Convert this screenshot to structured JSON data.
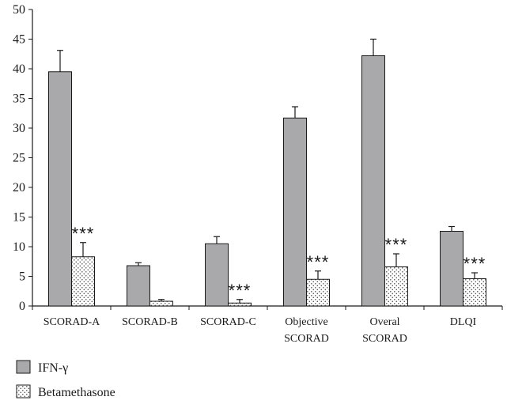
{
  "chart_data": {
    "type": "bar",
    "ylim": [
      0,
      50
    ],
    "yticks": [
      0,
      5,
      10,
      15,
      20,
      25,
      30,
      35,
      40,
      45,
      50
    ],
    "grid": false,
    "legend_position": "bottom-left",
    "categories": [
      [
        "SCORAD-A"
      ],
      [
        "SCORAD-B"
      ],
      [
        "SCORAD-C"
      ],
      [
        "Objective",
        "SCORAD"
      ],
      [
        "Overal",
        "SCORAD"
      ],
      [
        "DLQI"
      ]
    ],
    "series": [
      {
        "name": "IFN-γ",
        "color": "#a9a9ab",
        "pattern": "solid",
        "values": [
          39.5,
          6.8,
          10.5,
          31.7,
          42.2,
          12.6
        ],
        "errors": [
          3.6,
          0.5,
          1.2,
          1.9,
          2.8,
          0.8
        ]
      },
      {
        "name": "Betamethasone",
        "color": "#ffffff",
        "pattern": "dotted",
        "values": [
          8.3,
          0.8,
          0.5,
          4.5,
          6.6,
          4.6
        ],
        "errors": [
          2.4,
          0.3,
          0.6,
          1.4,
          2.2,
          1.0
        ]
      }
    ],
    "annotations": [
      "***",
      "",
      "***",
      "***",
      "***",
      "***"
    ]
  }
}
